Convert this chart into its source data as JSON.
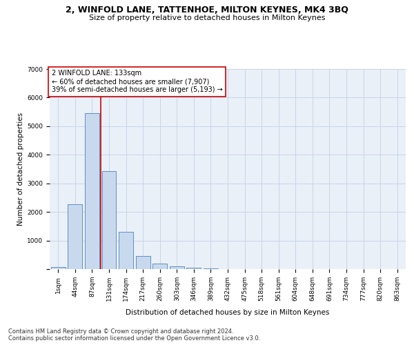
{
  "title": "2, WINFOLD LANE, TATTENHOE, MILTON KEYNES, MK4 3BQ",
  "subtitle": "Size of property relative to detached houses in Milton Keynes",
  "xlabel": "Distribution of detached houses by size in Milton Keynes",
  "ylabel": "Number of detached properties",
  "categories": [
    "1sqm",
    "44sqm",
    "87sqm",
    "131sqm",
    "174sqm",
    "217sqm",
    "260sqm",
    "303sqm",
    "346sqm",
    "389sqm",
    "432sqm",
    "475sqm",
    "518sqm",
    "561sqm",
    "604sqm",
    "648sqm",
    "691sqm",
    "734sqm",
    "777sqm",
    "820sqm",
    "863sqm"
  ],
  "values": [
    80,
    2280,
    5460,
    3420,
    1300,
    470,
    185,
    100,
    60,
    30,
    0,
    0,
    0,
    0,
    0,
    0,
    0,
    0,
    0,
    0,
    0
  ],
  "bar_color": "#c9d9ed",
  "bar_edge_color": "#5b8fc9",
  "highlight_color": "#cc0000",
  "annotation_text": "2 WINFOLD LANE: 133sqm\n← 60% of detached houses are smaller (7,907)\n39% of semi-detached houses are larger (5,193) →",
  "annotation_box_color": "#ffffff",
  "annotation_box_edge": "#cc0000",
  "ylim": [
    0,
    7000
  ],
  "yticks": [
    0,
    1000,
    2000,
    3000,
    4000,
    5000,
    6000,
    7000
  ],
  "grid_color": "#c8d4e8",
  "background_color": "#eaf0f8",
  "footer1": "Contains HM Land Registry data © Crown copyright and database right 2024.",
  "footer2": "Contains public sector information licensed under the Open Government Licence v3.0.",
  "title_fontsize": 9,
  "subtitle_fontsize": 8,
  "axis_label_fontsize": 7.5,
  "tick_fontsize": 6.5,
  "annotation_fontsize": 7,
  "footer_fontsize": 6
}
